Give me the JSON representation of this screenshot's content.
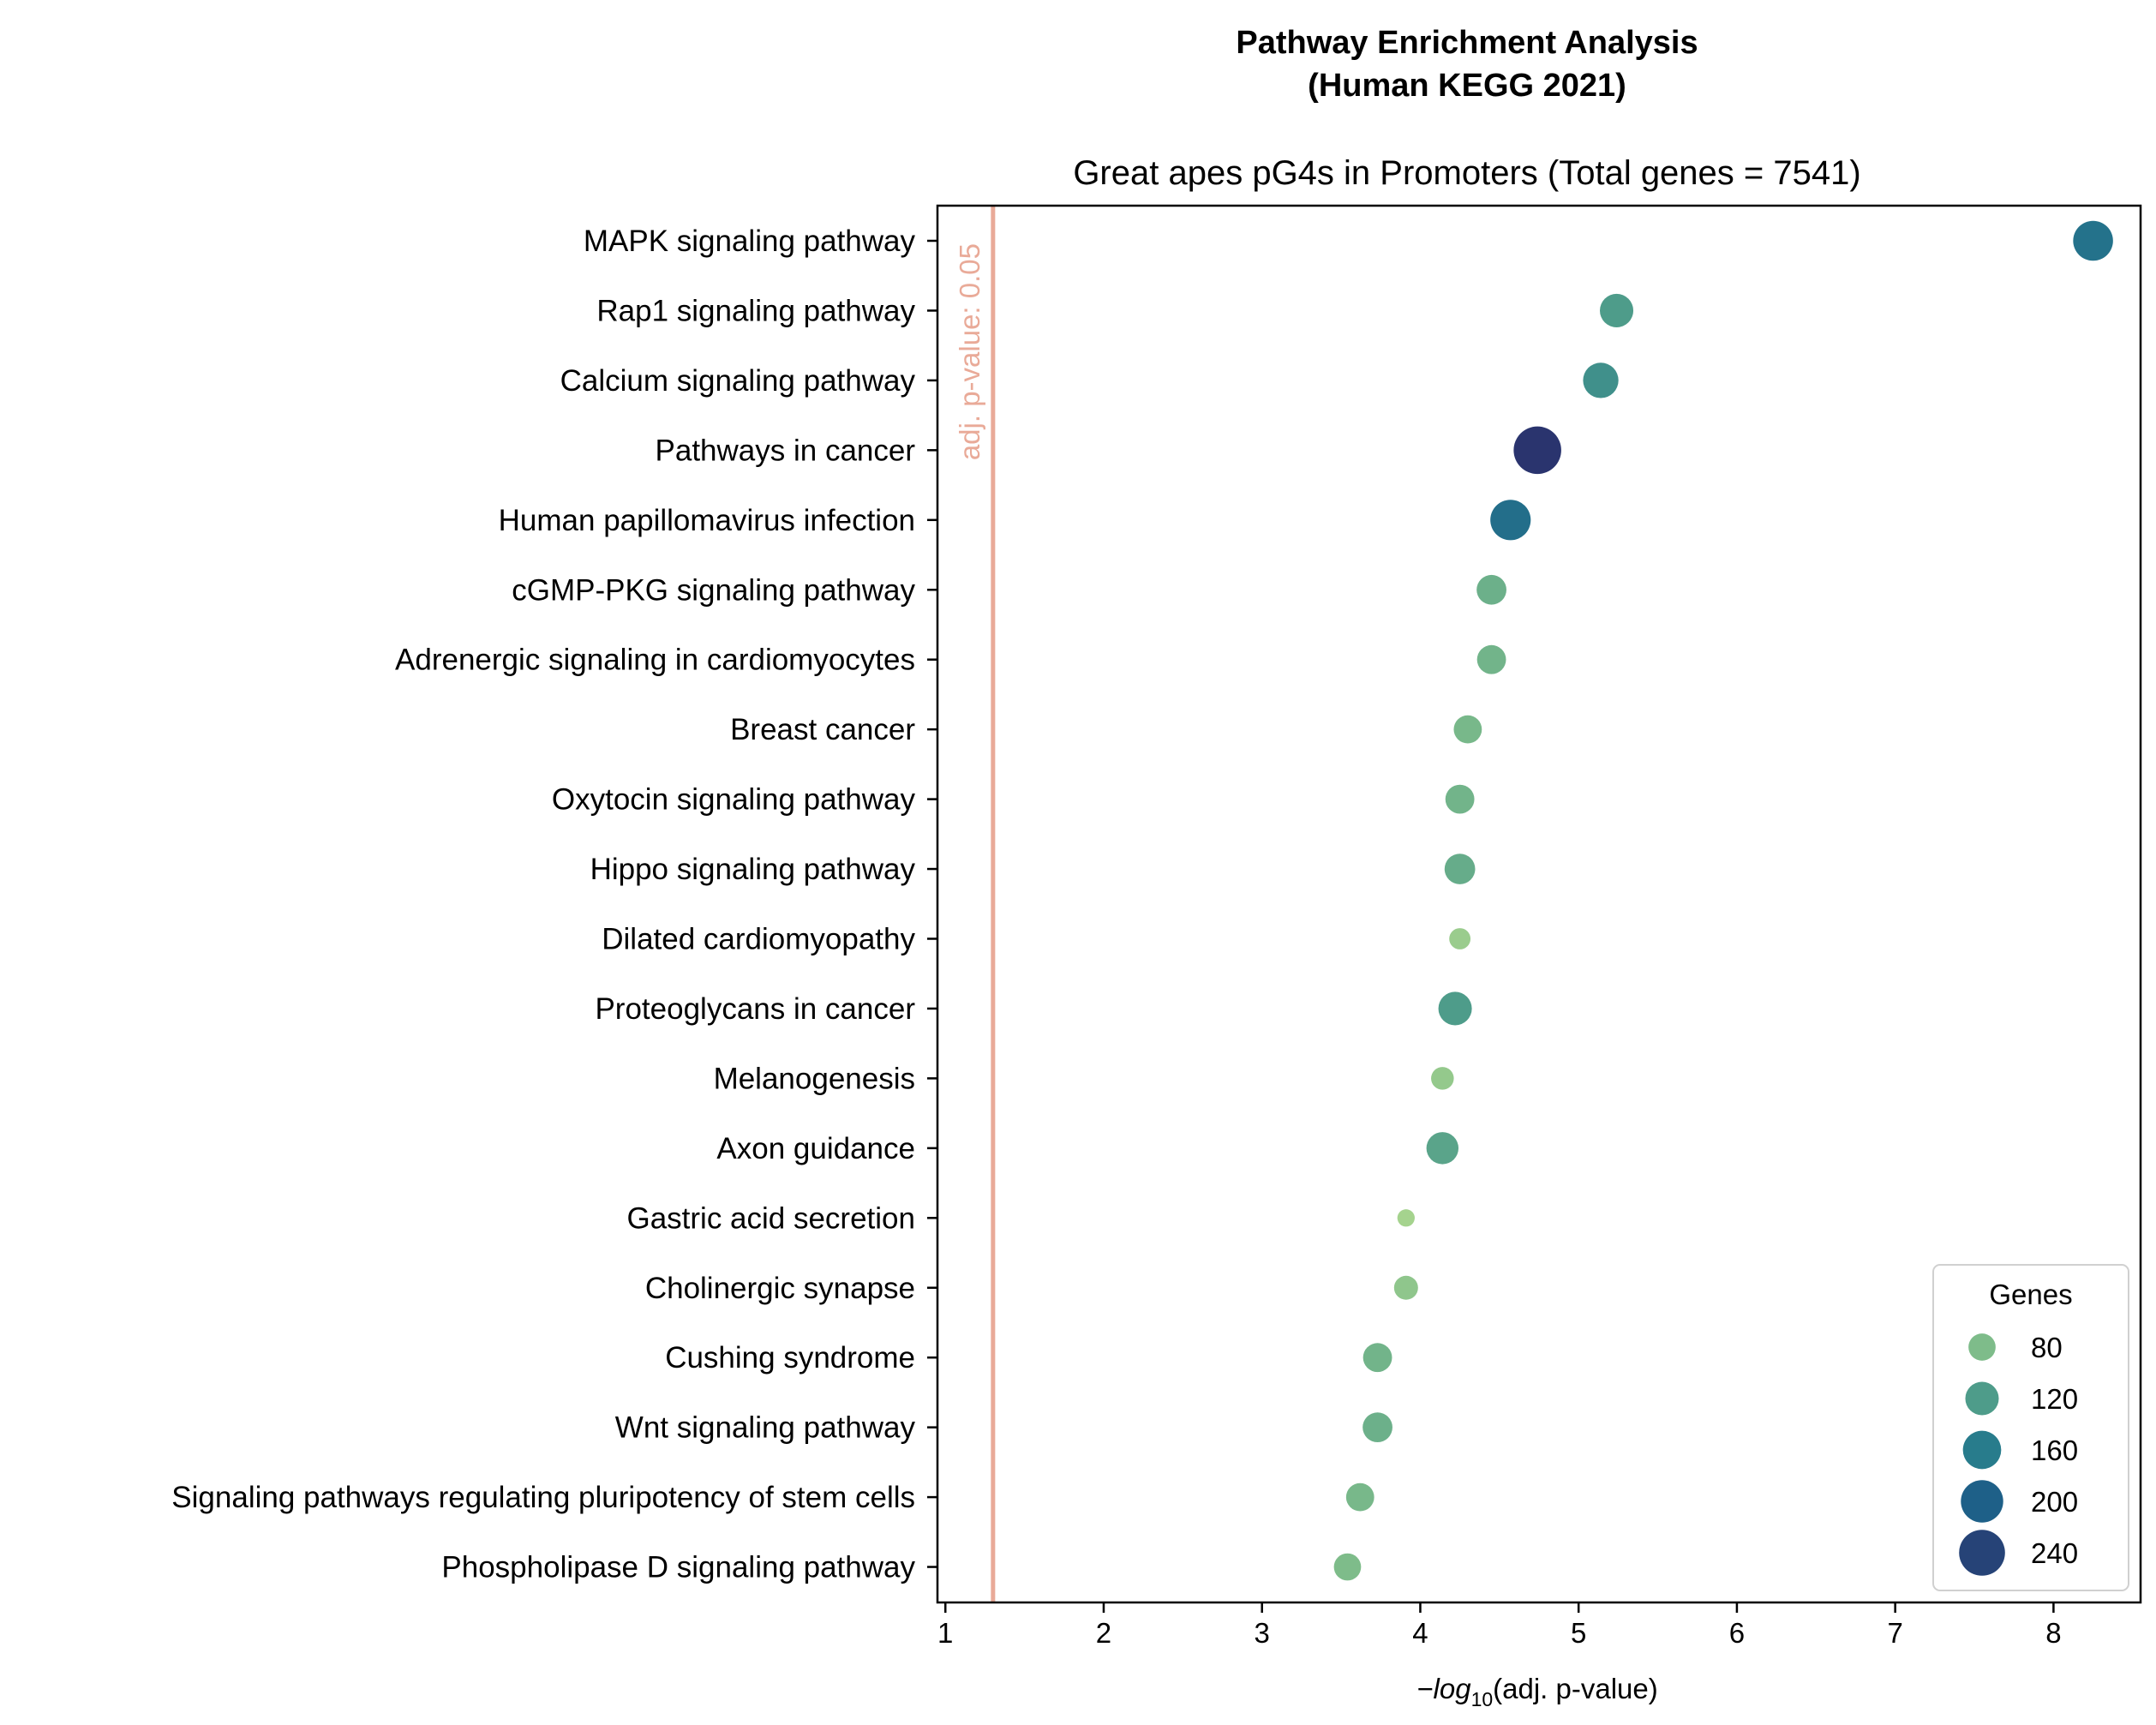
{
  "chart_data": {
    "type": "scatter",
    "title": "Pathway Enrichment Analysis",
    "title_line2": "(Human KEGG 2021)",
    "subtitle": "Great apes pG4s in Promoters (Total genes = 7541)",
    "xlabel_prefix": "−log",
    "xlabel_sub": "10",
    "xlabel_suffix": "(adj. p-value)",
    "xlim": [
      0.95,
      8.55
    ],
    "xticks": [
      1,
      2,
      3,
      4,
      5,
      6,
      7,
      8
    ],
    "grid": false,
    "threshold": {
      "x": 1.30103,
      "label": "adj. p-value: 0.05",
      "color": "#e9aa98"
    },
    "size_by": "genes",
    "color_by": "genes",
    "legend": {
      "title": "Genes",
      "placement": "lower-right",
      "entries": [
        {
          "label": "80",
          "value": 80
        },
        {
          "label": "120",
          "value": 120
        },
        {
          "label": "160",
          "value": 160
        },
        {
          "label": "200",
          "value": 200
        },
        {
          "label": "240",
          "value": 240
        }
      ]
    },
    "points": [
      {
        "pathway": "MAPK signaling pathway",
        "x": 8.25,
        "genes": 175
      },
      {
        "pathway": "Rap1 signaling pathway",
        "x": 5.24,
        "genes": 120
      },
      {
        "pathway": "Calcium signaling pathway",
        "x": 5.14,
        "genes": 135
      },
      {
        "pathway": "Pathways in cancer",
        "x": 4.74,
        "genes": 260
      },
      {
        "pathway": "Human papillomavirus infection",
        "x": 4.57,
        "genes": 180
      },
      {
        "pathway": "cGMP-PKG signaling pathway",
        "x": 4.45,
        "genes": 95
      },
      {
        "pathway": "Adrenergic signaling in cardiomyocytes",
        "x": 4.45,
        "genes": 90
      },
      {
        "pathway": "Breast cancer",
        "x": 4.3,
        "genes": 85
      },
      {
        "pathway": "Oxytocin signaling pathway",
        "x": 4.25,
        "genes": 90
      },
      {
        "pathway": "Hippo signaling pathway",
        "x": 4.25,
        "genes": 100
      },
      {
        "pathway": "Dilated cardiomyopathy",
        "x": 4.25,
        "genes": 55
      },
      {
        "pathway": "Proteoglycans in cancer",
        "x": 4.22,
        "genes": 120
      },
      {
        "pathway": "Melanogenesis",
        "x": 4.14,
        "genes": 60
      },
      {
        "pathway": "Axon guidance",
        "x": 4.14,
        "genes": 110
      },
      {
        "pathway": "Gastric acid secretion",
        "x": 3.91,
        "genes": 45
      },
      {
        "pathway": "Cholinergic synapse",
        "x": 3.91,
        "genes": 65
      },
      {
        "pathway": "Cushing syndrome",
        "x": 3.73,
        "genes": 90
      },
      {
        "pathway": "Wnt signaling pathway",
        "x": 3.73,
        "genes": 95
      },
      {
        "pathway": "Signaling pathways regulating pluripotency of stem cells",
        "x": 3.62,
        "genes": 85
      },
      {
        "pathway": "Phospholipase D signaling pathway",
        "x": 3.54,
        "genes": 80
      }
    ]
  }
}
